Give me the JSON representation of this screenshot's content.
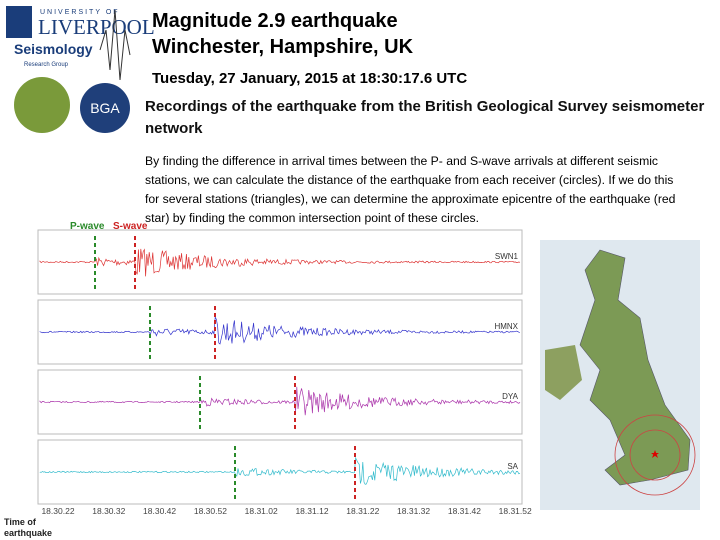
{
  "header": {
    "title_line1": "Magnitude 2.9 earthquake",
    "title_line2": "Winchester, Hampshire, UK",
    "date": "Tuesday, 27 January, 2015 at 18:30:17.6 UTC",
    "subtitle": "Recordings of the earthquake from the British Geological Survey seismometer network"
  },
  "logos": {
    "university_small": "UNIVERSITY OF",
    "university": "LIVERPOOL",
    "group": "Seismology",
    "group_sub": "Research Group",
    "bga": "BGA"
  },
  "body": "By finding the difference in arrival times between the P- and S-wave arrivals at different seismic stations, we can calculate the distance of the earthquake from each receiver (circles). If we do this for several stations (triangles), we can determine the approximate epicentre of the earthquake (red star) by finding the common intersection point of these circles.",
  "figure": {
    "p_wave": "P-wave",
    "s_wave": "S-wave",
    "stations": [
      "SWN1",
      "HMNX",
      "DYA",
      "SA"
    ],
    "time_labels": [
      "18.30.22",
      "18.30.32",
      "18.30.42",
      "18.30.52",
      "18.31.02",
      "18.31.12",
      "18.31.22",
      "18.31.32",
      "18.31.42",
      "18.31.52"
    ],
    "time_caption": "Time of earthquake"
  }
}
